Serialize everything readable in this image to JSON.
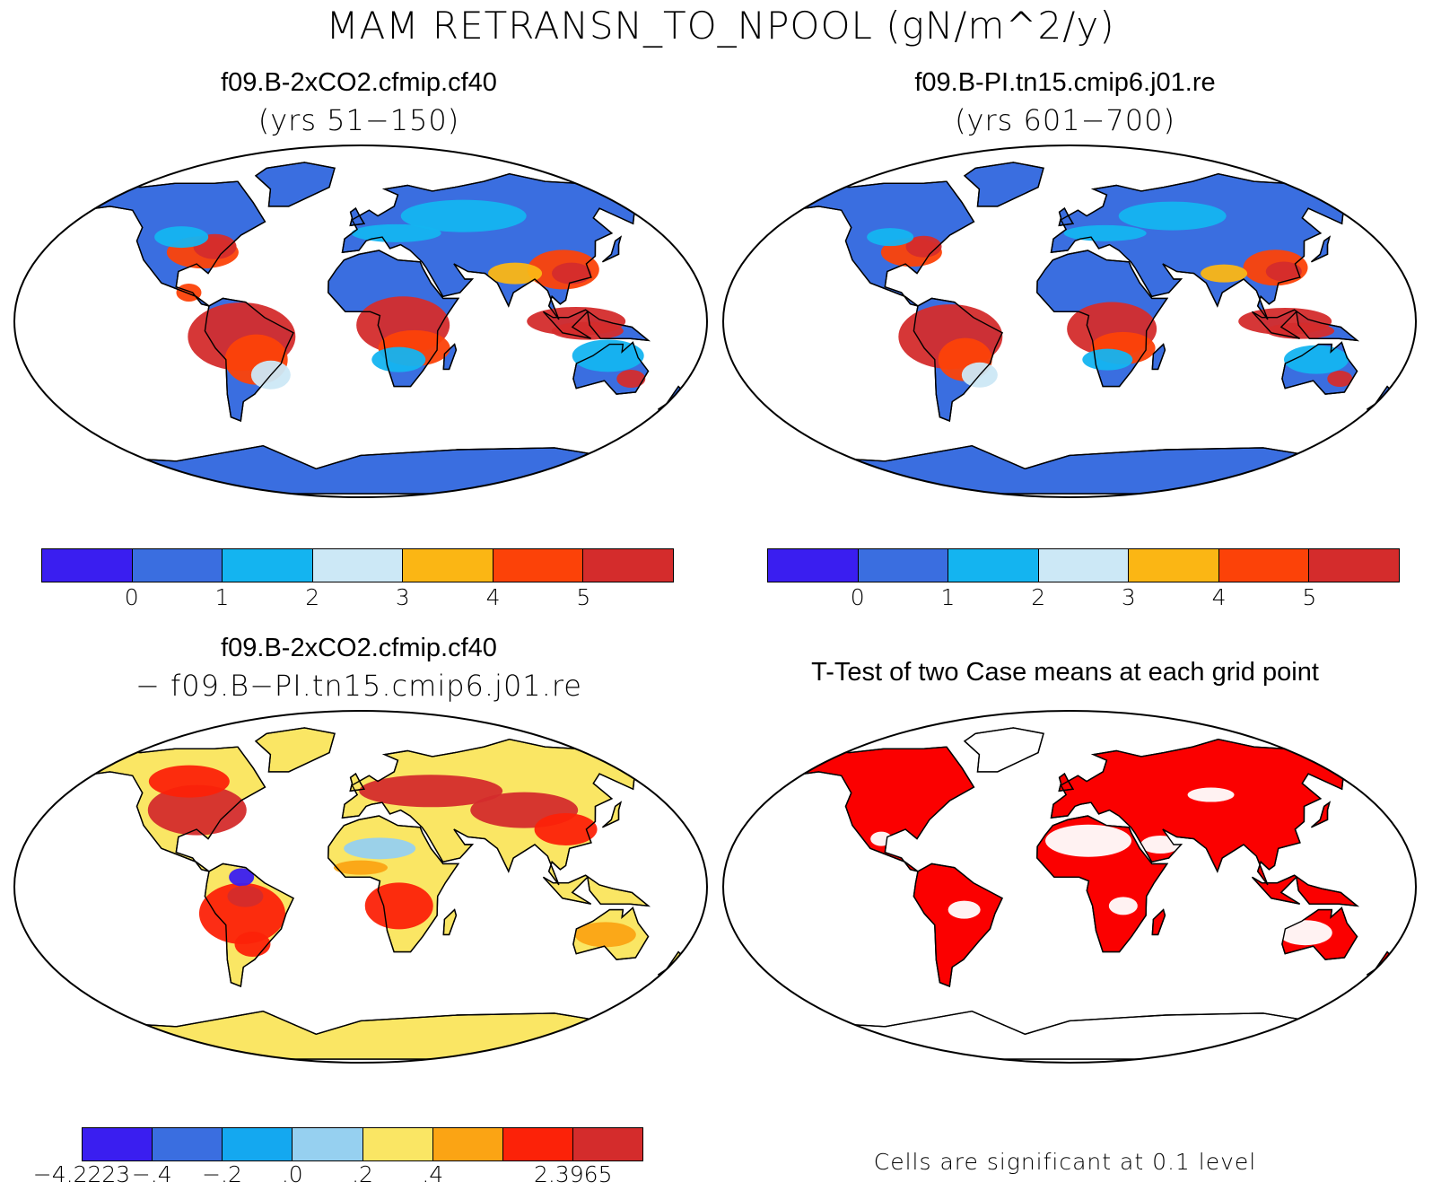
{
  "title": "MAM RETRANSN_TO_NPOOL (gN/m^2/y)",
  "panels": {
    "tl": {
      "name": "f09.B-2xCO2.cfmip.cf40",
      "years": "(yrs 51−150)"
    },
    "tr": {
      "name": "f09.B-PI.tn15.cmip6.j01.re",
      "years": "(yrs 601−700)"
    },
    "bl": {
      "name": "f09.B-2xCO2.cfmip.cf40",
      "minus": "− f09.B−PI.tn15.cmip6.j01.re"
    },
    "br": {
      "name": "T-Test of two Case means at each grid point",
      "note": "Cells are significant at 0.1 level"
    }
  },
  "colorbars": {
    "abs": {
      "colors": [
        "#3a1ef0",
        "#3a6ee0",
        "#14b4f0",
        "#cce8f6",
        "#fbb614",
        "#fc4208",
        "#d42c2c"
      ],
      "labels": [
        "0",
        "1",
        "2",
        "3",
        "4",
        "5"
      ]
    },
    "diff": {
      "colors": [
        "#3a1ef0",
        "#3a6ee0",
        "#14a8f0",
        "#96d0f0",
        "#fae664",
        "#fba414",
        "#fc2208",
        "#d42c2c"
      ],
      "labels": [
        "−4.2223",
        "−.4",
        "−.2",
        ".0",
        ".2",
        ".4",
        "2.3965"
      ]
    }
  },
  "significance_color": "#fb0000"
}
